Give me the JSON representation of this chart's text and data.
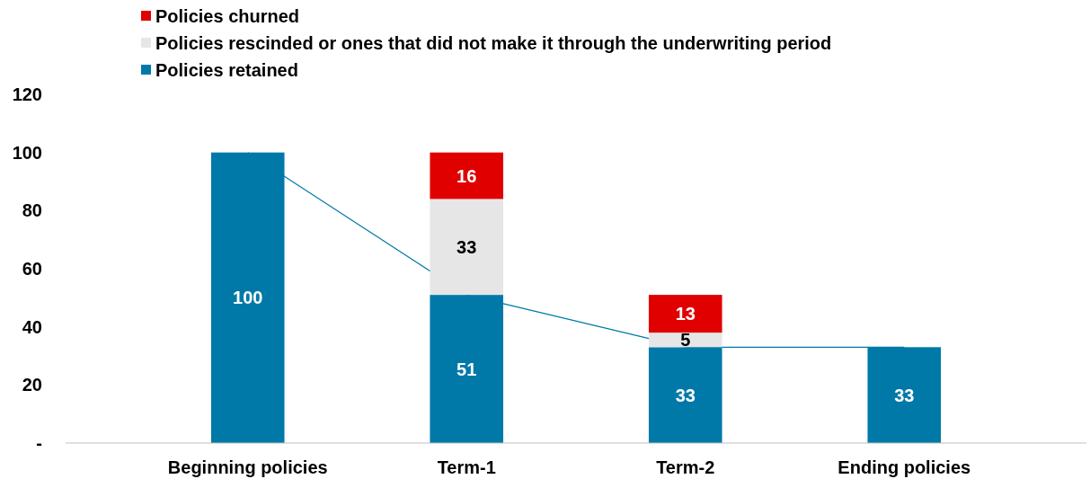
{
  "chart_data": {
    "type": "bar",
    "stacked": true,
    "categories": [
      "Beginning policies",
      "Term-1",
      "Term-2",
      "Ending policies"
    ],
    "series": [
      {
        "name": "Policies retained",
        "color": "#0079a8",
        "values": [
          100,
          51,
          33,
          33
        ]
      },
      {
        "name": "Policies rescinded or ones that did not make it through the underwriting period",
        "color": "#e6e6e6",
        "values": [
          null,
          33,
          5,
          null
        ]
      },
      {
        "name": "Policies churned",
        "color": "#e00000",
        "values": [
          null,
          16,
          13,
          null
        ]
      },
      {
        "type": "line",
        "color": "#0079a8",
        "values": [
          100,
          51,
          33,
          33
        ],
        "value_labels": [
          null,
          null,
          null,
          null
        ]
      }
    ],
    "ylim": [
      0,
      120
    ],
    "yticks": [
      {
        "value": 0,
        "label": "-"
      },
      20,
      40,
      60,
      80,
      100,
      120
    ],
    "data_labels": true,
    "grid": false,
    "legend": "top left"
  }
}
